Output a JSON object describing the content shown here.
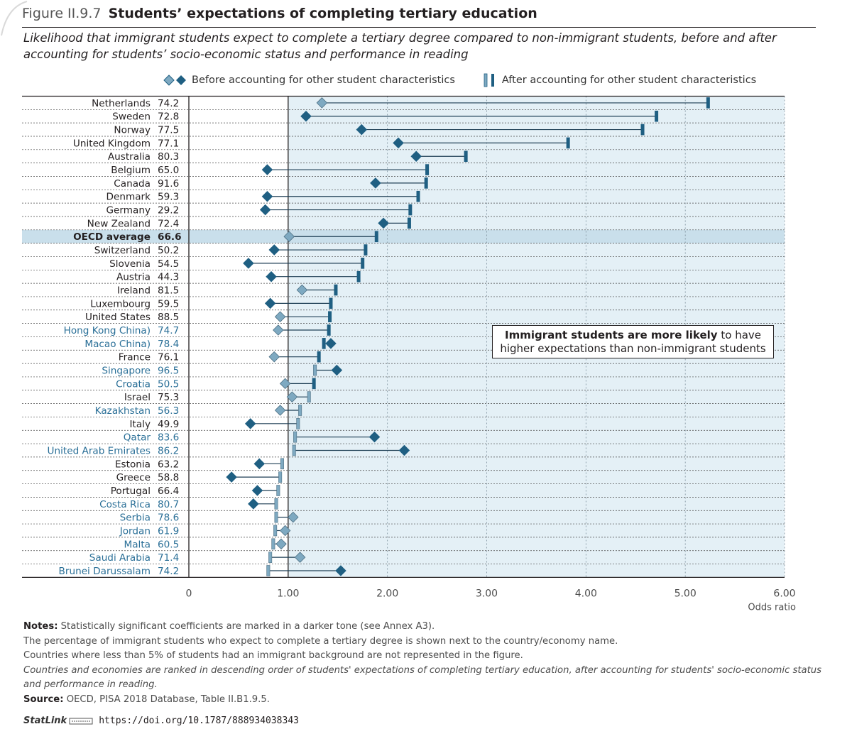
{
  "figure": {
    "number": "Figure II.9.7",
    "title": "Students’ expectations of completing tertiary education",
    "subtitle": "Likelihood that immigrant students expect to complete a tertiary degree compared to non-immigrant students, before and after accounting for students’ socio-economic status and performance in reading"
  },
  "legend": {
    "before": "Before accounting for other student characteristics",
    "after": "After accounting for other student characteristics"
  },
  "callout": {
    "bold": "Immigrant students are more likely",
    "rest_line1": " to have",
    "line2": "higher expectations than non-immigrant students"
  },
  "notes": {
    "notes_label": "Notes:",
    "note1": " Statistically significant coefficients are marked in a darker tone (see Annex A3).",
    "note2": "The percentage of immigrant students who expect to complete a tertiary degree is shown next to the country/economy name.",
    "note3": "Countries where less than 5% of students had an immigrant background are not represented in the figure.",
    "note4": "Countries and economies are ranked in descending order of students' expectations of completing tertiary education, after accounting for students' socio-economic status and performance in reading.",
    "source_label": "Source:",
    "source": " OECD, PISA 2018 Database, Table II.B1.9.5.",
    "statlink_label": "StatLink",
    "statlink_url": "https://doi.org/10.1787/888934038343"
  },
  "colors": {
    "dark": "#1f5f82",
    "light": "#7ea9c1",
    "panel": "#e4f0f6",
    "oecd_band": "#c9dfeb",
    "partner_text": "#2a6f97"
  },
  "chart_data": {
    "type": "dot-plot",
    "xlabel": "Odds ratio",
    "xlim": [
      0,
      6
    ],
    "xticks": [
      "0",
      "1.00",
      "2.00",
      "3.00",
      "4.00",
      "5.00",
      "6.00"
    ],
    "xtick_values": [
      0,
      1,
      2,
      3,
      4,
      5,
      6
    ],
    "reference_value": 1,
    "series": [
      {
        "name": "Before accounting for other student characteristics",
        "marker": "diamond"
      },
      {
        "name": "After accounting for other student characteristics",
        "marker": "bar"
      }
    ],
    "rows": [
      {
        "name": "Netherlands",
        "pct": "74.2",
        "before": 1.34,
        "after": 5.23,
        "before_sig": false,
        "after_sig": true,
        "partner": false
      },
      {
        "name": "Sweden",
        "pct": "72.8",
        "before": 1.18,
        "after": 4.71,
        "before_sig": true,
        "after_sig": true,
        "partner": false
      },
      {
        "name": "Norway",
        "pct": "77.5",
        "before": 1.74,
        "after": 4.57,
        "before_sig": true,
        "after_sig": true,
        "partner": false
      },
      {
        "name": "United Kingdom",
        "pct": "77.1",
        "before": 2.11,
        "after": 3.82,
        "before_sig": true,
        "after_sig": true,
        "partner": false
      },
      {
        "name": "Australia",
        "pct": "80.3",
        "before": 2.29,
        "after": 2.79,
        "before_sig": true,
        "after_sig": true,
        "partner": false
      },
      {
        "name": "Belgium",
        "pct": "65.0",
        "before": 0.79,
        "after": 2.4,
        "before_sig": true,
        "after_sig": true,
        "partner": false
      },
      {
        "name": "Canada",
        "pct": "91.6",
        "before": 1.88,
        "after": 2.39,
        "before_sig": true,
        "after_sig": true,
        "partner": false
      },
      {
        "name": "Denmark",
        "pct": "59.3",
        "before": 0.79,
        "after": 2.31,
        "before_sig": true,
        "after_sig": true,
        "partner": false
      },
      {
        "name": "Germany",
        "pct": "29.2",
        "before": 0.77,
        "after": 2.23,
        "before_sig": true,
        "after_sig": true,
        "partner": false
      },
      {
        "name": "New Zealand",
        "pct": "72.4",
        "before": 1.96,
        "after": 2.22,
        "before_sig": true,
        "after_sig": true,
        "partner": false
      },
      {
        "name": "OECD average",
        "pct": "66.6",
        "before": 1.01,
        "after": 1.89,
        "before_sig": false,
        "after_sig": true,
        "partner": false,
        "oecd": true
      },
      {
        "name": "Switzerland",
        "pct": "50.2",
        "before": 0.86,
        "after": 1.78,
        "before_sig": true,
        "after_sig": true,
        "partner": false
      },
      {
        "name": "Slovenia",
        "pct": "54.5",
        "before": 0.6,
        "after": 1.75,
        "before_sig": true,
        "after_sig": true,
        "partner": false
      },
      {
        "name": "Austria",
        "pct": "44.3",
        "before": 0.83,
        "after": 1.71,
        "before_sig": true,
        "after_sig": true,
        "partner": false
      },
      {
        "name": "Ireland",
        "pct": "81.5",
        "before": 1.14,
        "after": 1.48,
        "before_sig": false,
        "after_sig": true,
        "partner": false
      },
      {
        "name": "Luxembourg",
        "pct": "59.5",
        "before": 0.82,
        "after": 1.43,
        "before_sig": true,
        "after_sig": true,
        "partner": false
      },
      {
        "name": "United States",
        "pct": "88.5",
        "before": 0.92,
        "after": 1.42,
        "before_sig": false,
        "after_sig": true,
        "partner": false
      },
      {
        "name": "Hong Kong China)",
        "pct": "74.7",
        "before": 0.9,
        "after": 1.41,
        "before_sig": false,
        "after_sig": true,
        "partner": true
      },
      {
        "name": "Macao China)",
        "pct": "78.4",
        "before": 1.43,
        "after": 1.36,
        "before_sig": true,
        "after_sig": true,
        "partner": true
      },
      {
        "name": "France",
        "pct": "76.1",
        "before": 0.86,
        "after": 1.31,
        "before_sig": false,
        "after_sig": true,
        "partner": false
      },
      {
        "name": "Singapore",
        "pct": "96.5",
        "before": 1.49,
        "after": 1.27,
        "before_sig": true,
        "after_sig": false,
        "partner": true
      },
      {
        "name": "Croatia",
        "pct": "50.5",
        "before": 0.97,
        "after": 1.26,
        "before_sig": false,
        "after_sig": true,
        "partner": true
      },
      {
        "name": "Israel",
        "pct": "75.3",
        "before": 1.04,
        "after": 1.21,
        "before_sig": false,
        "after_sig": false,
        "partner": false
      },
      {
        "name": "Kazakhstan",
        "pct": "56.3",
        "before": 0.92,
        "after": 1.12,
        "before_sig": false,
        "after_sig": false,
        "partner": true
      },
      {
        "name": "Italy",
        "pct": "49.9",
        "before": 0.62,
        "after": 1.1,
        "before_sig": true,
        "after_sig": false,
        "partner": false
      },
      {
        "name": "Qatar",
        "pct": "83.6",
        "before": 1.87,
        "after": 1.07,
        "before_sig": true,
        "after_sig": false,
        "partner": true
      },
      {
        "name": "United Arab Emirates",
        "pct": "86.2",
        "before": 2.17,
        "after": 1.06,
        "before_sig": true,
        "after_sig": false,
        "partner": true
      },
      {
        "name": "Estonia",
        "pct": "63.2",
        "before": 0.71,
        "after": 0.94,
        "before_sig": true,
        "after_sig": false,
        "partner": false
      },
      {
        "name": "Greece",
        "pct": "58.8",
        "before": 0.43,
        "after": 0.92,
        "before_sig": true,
        "after_sig": false,
        "partner": false
      },
      {
        "name": "Portugal",
        "pct": "66.4",
        "before": 0.69,
        "after": 0.9,
        "before_sig": true,
        "after_sig": false,
        "partner": false
      },
      {
        "name": "Costa Rica",
        "pct": "80.7",
        "before": 0.65,
        "after": 0.88,
        "before_sig": true,
        "after_sig": false,
        "partner": true
      },
      {
        "name": "Serbia",
        "pct": "78.6",
        "before": 1.05,
        "after": 0.88,
        "before_sig": false,
        "after_sig": false,
        "partner": true
      },
      {
        "name": "Jordan",
        "pct": "61.9",
        "before": 0.97,
        "after": 0.87,
        "before_sig": false,
        "after_sig": false,
        "partner": true
      },
      {
        "name": "Malta",
        "pct": "60.5",
        "before": 0.93,
        "after": 0.85,
        "before_sig": false,
        "after_sig": false,
        "partner": true
      },
      {
        "name": "Saudi Arabia",
        "pct": "71.4",
        "before": 1.12,
        "after": 0.82,
        "before_sig": false,
        "after_sig": false,
        "partner": true
      },
      {
        "name": "Brunei Darussalam",
        "pct": "74.2",
        "before": 1.53,
        "after": 0.8,
        "before_sig": true,
        "after_sig": false,
        "partner": true
      }
    ]
  }
}
